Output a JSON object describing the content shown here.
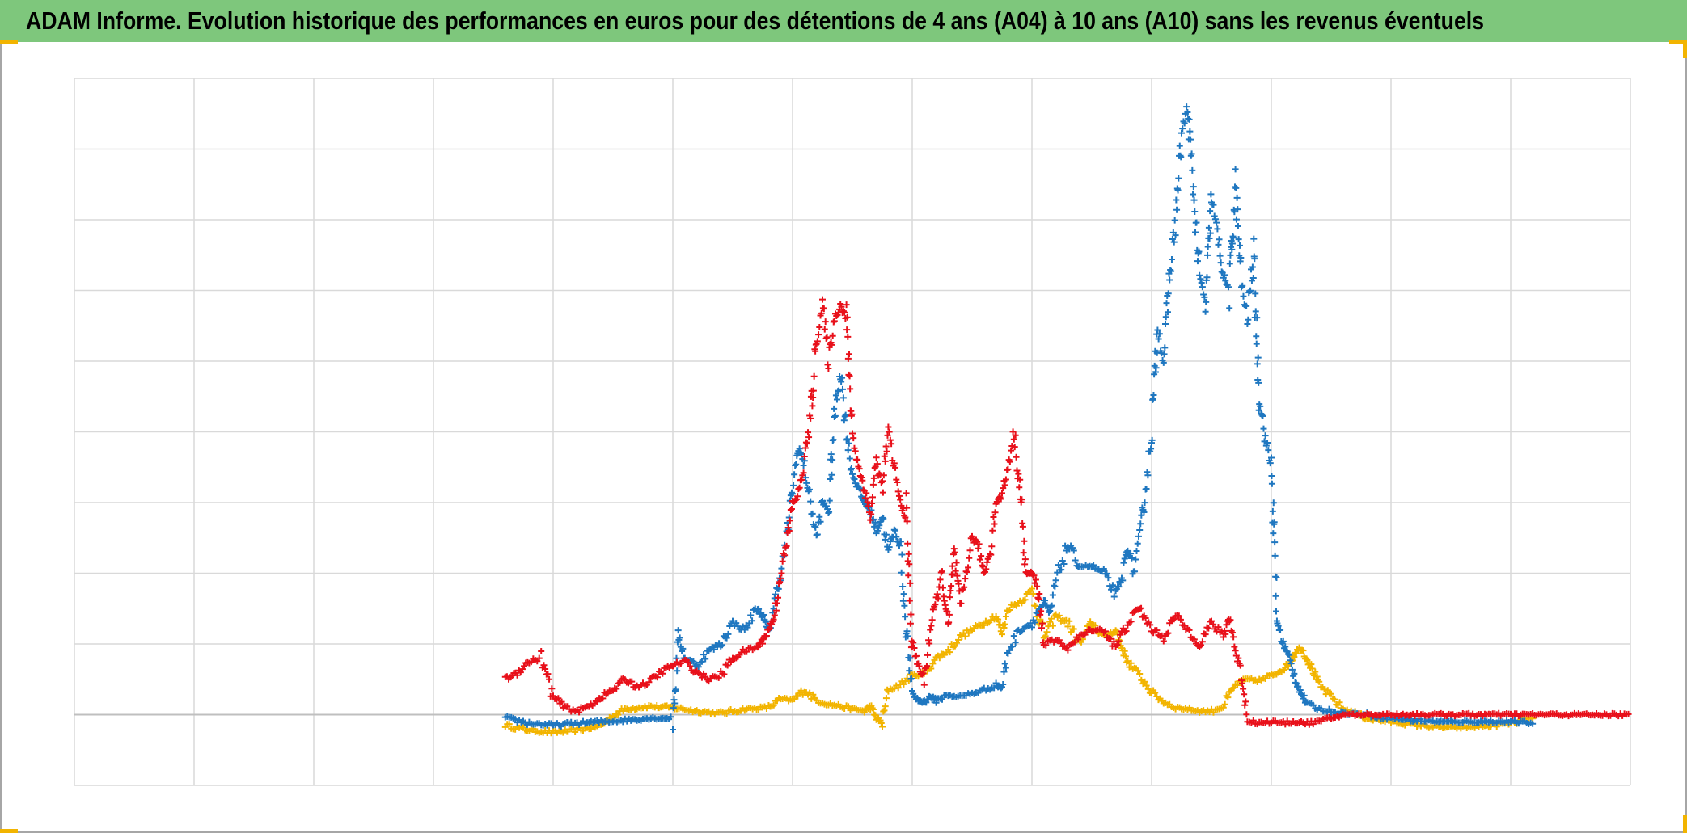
{
  "title": "ADAM Informe. Evolution historique des performances en euros pour des détentions de 4 ans (A04) à 10 ans (A10) sans les revenus éventuels",
  "colors": {
    "title_bg": "#7ec77c",
    "corner_marks": "#f2b400",
    "gridline": "#d9d9d9",
    "baseline": "#bfbfbf"
  },
  "chart_data": {
    "type": "scatter",
    "marker": "plus",
    "title": "ADAM Informe. Evolution historique des performances en euros pour des détentions de 4 ans (A04) à 10 ans (A10) sans les revenus éventuels",
    "xlabel": "",
    "ylabel": "",
    "xlim": [
      0,
      13
    ],
    "ylim": [
      -1,
      9
    ],
    "grid": true,
    "tick_labels_visible": false,
    "legend": "none",
    "series": [
      {
        "color": "#f2b400",
        "points": [
          [
            3.6,
            -0.15
          ],
          [
            3.8,
            -0.22
          ],
          [
            4.0,
            -0.25
          ],
          [
            4.2,
            -0.22
          ],
          [
            4.4,
            -0.15
          ],
          [
            4.5,
            -0.02
          ],
          [
            4.6,
            0.08
          ],
          [
            4.8,
            0.12
          ],
          [
            5.0,
            0.1
          ],
          [
            5.2,
            0.05
          ],
          [
            5.4,
            0.02
          ],
          [
            5.6,
            0.08
          ],
          [
            5.8,
            0.1
          ],
          [
            5.9,
            0.22
          ],
          [
            6.0,
            0.2
          ],
          [
            6.1,
            0.35
          ],
          [
            6.2,
            0.2
          ],
          [
            6.3,
            0.15
          ],
          [
            6.4,
            0.12
          ],
          [
            6.5,
            0.08
          ],
          [
            6.6,
            0.05
          ],
          [
            6.65,
            0.12
          ],
          [
            6.7,
            -0.05
          ],
          [
            6.75,
            -0.12
          ],
          [
            6.8,
            0.35
          ],
          [
            6.9,
            0.42
          ],
          [
            7.0,
            0.55
          ],
          [
            7.1,
            0.58
          ],
          [
            7.2,
            0.8
          ],
          [
            7.3,
            0.9
          ],
          [
            7.4,
            1.1
          ],
          [
            7.5,
            1.2
          ],
          [
            7.6,
            1.3
          ],
          [
            7.7,
            1.4
          ],
          [
            7.75,
            1.15
          ],
          [
            7.8,
            1.5
          ],
          [
            7.9,
            1.6
          ],
          [
            8.0,
            1.75
          ],
          [
            8.1,
            1.1
          ],
          [
            8.2,
            1.4
          ],
          [
            8.3,
            1.3
          ],
          [
            8.4,
            1.0
          ],
          [
            8.5,
            1.3
          ],
          [
            8.6,
            1.1
          ],
          [
            8.7,
            1.2
          ],
          [
            8.75,
            0.95
          ],
          [
            8.8,
            0.75
          ],
          [
            8.9,
            0.55
          ],
          [
            9.0,
            0.32
          ],
          [
            9.1,
            0.18
          ],
          [
            9.2,
            0.1
          ],
          [
            9.3,
            0.08
          ],
          [
            9.4,
            0.05
          ],
          [
            9.5,
            0.05
          ],
          [
            9.6,
            0.12
          ],
          [
            9.7,
            0.42
          ],
          [
            9.8,
            0.5
          ],
          [
            9.9,
            0.48
          ],
          [
            10.0,
            0.55
          ],
          [
            10.1,
            0.65
          ],
          [
            10.15,
            0.72
          ],
          [
            10.2,
            0.88
          ],
          [
            10.25,
            0.95
          ],
          [
            10.3,
            0.78
          ],
          [
            10.35,
            0.62
          ],
          [
            10.4,
            0.42
          ],
          [
            10.5,
            0.25
          ],
          [
            10.6,
            0.08
          ],
          [
            10.7,
            0.02
          ],
          [
            10.8,
            -0.05
          ],
          [
            11.0,
            -0.1
          ],
          [
            11.2,
            -0.14
          ],
          [
            11.4,
            -0.18
          ],
          [
            11.6,
            -0.18
          ],
          [
            11.8,
            -0.16
          ],
          [
            12.0,
            -0.12
          ],
          [
            12.2,
            -0.05
          ]
        ]
      },
      {
        "color": "#1f77c0",
        "points": [
          [
            3.6,
            -0.05
          ],
          [
            3.8,
            -0.12
          ],
          [
            4.0,
            -0.15
          ],
          [
            4.2,
            -0.12
          ],
          [
            4.4,
            -0.1
          ],
          [
            4.6,
            -0.08
          ],
          [
            4.8,
            -0.05
          ],
          [
            5.0,
            -0.05
          ],
          [
            5.05,
            1.1
          ],
          [
            5.1,
            0.8
          ],
          [
            5.2,
            0.7
          ],
          [
            5.3,
            0.9
          ],
          [
            5.4,
            1.0
          ],
          [
            5.5,
            1.3
          ],
          [
            5.6,
            1.2
          ],
          [
            5.7,
            1.5
          ],
          [
            5.75,
            1.4
          ],
          [
            5.8,
            1.15
          ],
          [
            5.85,
            1.6
          ],
          [
            5.9,
            2.0
          ],
          [
            5.95,
            2.5
          ],
          [
            6.0,
            3.2
          ],
          [
            6.05,
            3.8
          ],
          [
            6.1,
            3.5
          ],
          [
            6.15,
            3.0
          ],
          [
            6.2,
            2.5
          ],
          [
            6.25,
            3.0
          ],
          [
            6.3,
            2.9
          ],
          [
            6.35,
            4.2
          ],
          [
            6.4,
            4.9
          ],
          [
            6.45,
            4.0
          ],
          [
            6.5,
            3.4
          ],
          [
            6.55,
            3.2
          ],
          [
            6.6,
            3.0
          ],
          [
            6.65,
            2.9
          ],
          [
            6.7,
            2.6
          ],
          [
            6.75,
            2.8
          ],
          [
            6.8,
            2.3
          ],
          [
            6.85,
            2.6
          ],
          [
            6.9,
            2.4
          ],
          [
            6.95,
            1.2
          ],
          [
            7.0,
            0.3
          ],
          [
            7.05,
            0.2
          ],
          [
            7.1,
            0.18
          ],
          [
            7.15,
            0.25
          ],
          [
            7.2,
            0.2
          ],
          [
            7.3,
            0.28
          ],
          [
            7.4,
            0.25
          ],
          [
            7.5,
            0.3
          ],
          [
            7.6,
            0.35
          ],
          [
            7.7,
            0.42
          ],
          [
            7.75,
            0.38
          ],
          [
            7.8,
            0.9
          ],
          [
            7.9,
            1.2
          ],
          [
            8.0,
            1.3
          ],
          [
            8.1,
            1.6
          ],
          [
            8.15,
            1.4
          ],
          [
            8.2,
            1.9
          ],
          [
            8.3,
            2.4
          ],
          [
            8.4,
            2.1
          ],
          [
            8.5,
            2.1
          ],
          [
            8.6,
            2.0
          ],
          [
            8.7,
            1.7
          ],
          [
            8.75,
            1.9
          ],
          [
            8.8,
            2.4
          ],
          [
            8.85,
            2.0
          ],
          [
            8.9,
            2.5
          ],
          [
            8.95,
            3.2
          ],
          [
            9.0,
            4.0
          ],
          [
            9.05,
            5.5
          ],
          [
            9.1,
            5.0
          ],
          [
            9.15,
            6.2
          ],
          [
            9.2,
            7.0
          ],
          [
            9.25,
            8.2
          ],
          [
            9.3,
            8.6
          ],
          [
            9.35,
            7.4
          ],
          [
            9.4,
            6.2
          ],
          [
            9.45,
            5.8
          ],
          [
            9.5,
            7.3
          ],
          [
            9.55,
            6.8
          ],
          [
            9.6,
            6.2
          ],
          [
            9.65,
            6.0
          ],
          [
            9.7,
            7.5
          ],
          [
            9.75,
            6.1
          ],
          [
            9.8,
            5.6
          ],
          [
            9.85,
            6.5
          ],
          [
            9.9,
            4.5
          ],
          [
            9.95,
            3.9
          ],
          [
            10.0,
            3.5
          ],
          [
            10.05,
            1.3
          ],
          [
            10.1,
            1.0
          ],
          [
            10.15,
            0.8
          ],
          [
            10.2,
            0.5
          ],
          [
            10.25,
            0.3
          ],
          [
            10.3,
            0.15
          ],
          [
            10.4,
            0.08
          ],
          [
            10.5,
            0.05
          ],
          [
            10.6,
            0.02
          ],
          [
            10.8,
            0.0
          ],
          [
            11.0,
            -0.05
          ],
          [
            11.2,
            -0.08
          ],
          [
            11.4,
            -0.1
          ],
          [
            11.6,
            -0.1
          ],
          [
            11.8,
            -0.1
          ],
          [
            12.0,
            -0.1
          ],
          [
            12.2,
            -0.12
          ]
        ]
      },
      {
        "color": "#e8101a",
        "points": [
          [
            3.6,
            0.5
          ],
          [
            3.7,
            0.6
          ],
          [
            3.8,
            0.75
          ],
          [
            3.9,
            0.8
          ],
          [
            4.0,
            0.25
          ],
          [
            4.1,
            0.1
          ],
          [
            4.2,
            0.05
          ],
          [
            4.3,
            0.12
          ],
          [
            4.4,
            0.25
          ],
          [
            4.5,
            0.35
          ],
          [
            4.6,
            0.5
          ],
          [
            4.7,
            0.4
          ],
          [
            4.8,
            0.45
          ],
          [
            4.9,
            0.6
          ],
          [
            5.0,
            0.7
          ],
          [
            5.1,
            0.75
          ],
          [
            5.2,
            0.6
          ],
          [
            5.3,
            0.5
          ],
          [
            5.4,
            0.55
          ],
          [
            5.5,
            0.8
          ],
          [
            5.6,
            0.9
          ],
          [
            5.7,
            0.95
          ],
          [
            5.75,
            1.05
          ],
          [
            5.8,
            1.2
          ],
          [
            5.85,
            1.4
          ],
          [
            5.9,
            2.0
          ],
          [
            5.95,
            2.4
          ],
          [
            6.0,
            3.0
          ],
          [
            6.05,
            3.1
          ],
          [
            6.1,
            3.6
          ],
          [
            6.15,
            4.2
          ],
          [
            6.2,
            5.3
          ],
          [
            6.25,
            5.8
          ],
          [
            6.3,
            5.0
          ],
          [
            6.35,
            5.6
          ],
          [
            6.4,
            5.8
          ],
          [
            6.45,
            5.6
          ],
          [
            6.5,
            4.0
          ],
          [
            6.55,
            3.5
          ],
          [
            6.6,
            3.2
          ],
          [
            6.65,
            2.8
          ],
          [
            6.7,
            3.6
          ],
          [
            6.75,
            3.2
          ],
          [
            6.8,
            4.0
          ],
          [
            6.85,
            3.5
          ],
          [
            6.9,
            3.0
          ],
          [
            6.95,
            2.8
          ],
          [
            7.0,
            1.0
          ],
          [
            7.05,
            0.7
          ],
          [
            7.1,
            0.5
          ],
          [
            7.15,
            1.2
          ],
          [
            7.2,
            1.6
          ],
          [
            7.25,
            2.0
          ],
          [
            7.3,
            1.2
          ],
          [
            7.35,
            2.3
          ],
          [
            7.4,
            1.5
          ],
          [
            7.45,
            2.0
          ],
          [
            7.5,
            2.5
          ],
          [
            7.55,
            2.4
          ],
          [
            7.6,
            2.0
          ],
          [
            7.65,
            2.3
          ],
          [
            7.7,
            3.0
          ],
          [
            7.75,
            3.1
          ],
          [
            7.8,
            3.5
          ],
          [
            7.85,
            4.0
          ],
          [
            7.9,
            3.2
          ],
          [
            7.95,
            2.0
          ],
          [
            8.0,
            2.0
          ],
          [
            8.05,
            1.8
          ],
          [
            8.1,
            1.0
          ],
          [
            8.2,
            1.05
          ],
          [
            8.3,
            0.95
          ],
          [
            8.4,
            1.1
          ],
          [
            8.5,
            1.2
          ],
          [
            8.6,
            1.2
          ],
          [
            8.7,
            0.95
          ],
          [
            8.8,
            1.3
          ],
          [
            8.9,
            1.5
          ],
          [
            9.0,
            1.2
          ],
          [
            9.1,
            1.1
          ],
          [
            9.2,
            1.4
          ],
          [
            9.3,
            1.2
          ],
          [
            9.4,
            1.0
          ],
          [
            9.5,
            1.3
          ],
          [
            9.6,
            1.1
          ],
          [
            9.65,
            1.4
          ],
          [
            9.7,
            0.9
          ],
          [
            9.75,
            0.6
          ],
          [
            9.8,
            -0.08
          ],
          [
            9.9,
            -0.12
          ],
          [
            10.0,
            -0.1
          ],
          [
            10.1,
            -0.12
          ],
          [
            10.2,
            -0.1
          ],
          [
            10.3,
            -0.12
          ],
          [
            10.4,
            -0.1
          ],
          [
            10.5,
            -0.05
          ],
          [
            10.6,
            0.0
          ],
          [
            10.8,
            0.0
          ],
          [
            11.0,
            0.0
          ],
          [
            11.2,
            0.0
          ],
          [
            11.4,
            0.0
          ],
          [
            11.6,
            0.0
          ],
          [
            11.8,
            0.0
          ],
          [
            12.0,
            0.0
          ],
          [
            12.2,
            0.0
          ],
          [
            12.4,
            0.0
          ],
          [
            12.6,
            0.0
          ],
          [
            12.8,
            0.0
          ],
          [
            13.0,
            0.0
          ]
        ]
      }
    ]
  }
}
